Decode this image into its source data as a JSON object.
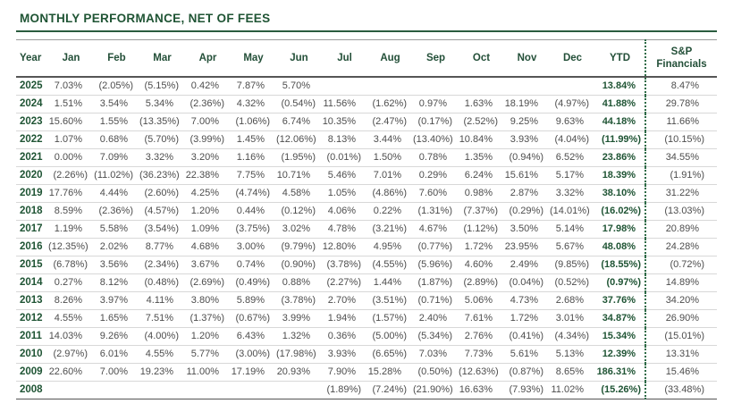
{
  "title": "MONTHLY PERFORMANCE, NET OF FEES",
  "colors": {
    "accent_green": "#1f5434",
    "data_text_gray": "#4d4d4d",
    "row_separator": "#d8d8d8",
    "dotted_divider_green": "#2e6b47"
  },
  "table": {
    "columns": [
      "Year",
      "Jan",
      "Feb",
      "Mar",
      "Apr",
      "May",
      "Jun",
      "Jul",
      "Aug",
      "Sep",
      "Oct",
      "Nov",
      "Dec",
      "YTD"
    ],
    "sp_header": {
      "line1": "S&P",
      "line2": "Financials"
    },
    "rows": [
      {
        "year": "2025",
        "months": [
          "7.03%",
          "(2.05%)",
          "(5.15%)",
          "0.42%",
          "7.87%",
          "5.70%",
          "",
          "",
          "",
          "",
          "",
          ""
        ],
        "ytd": "13.84%",
        "sp": "8.47%"
      },
      {
        "year": "2024",
        "months": [
          "1.51%",
          "3.54%",
          "5.34%",
          "(2.36%)",
          "4.32%",
          "(0.54%)",
          "11.56%",
          "(1.62%)",
          "0.97%",
          "1.63%",
          "18.19%",
          "(4.97%)"
        ],
        "ytd": "41.88%",
        "sp": "29.78%"
      },
      {
        "year": "2023",
        "months": [
          "15.60%",
          "1.55%",
          "(13.35%)",
          "7.00%",
          "(1.06%)",
          "6.74%",
          "10.35%",
          "(2.47%)",
          "(0.17%)",
          "(2.52%)",
          "9.25%",
          "9.63%"
        ],
        "ytd": "44.18%",
        "sp": "11.66%"
      },
      {
        "year": "2022",
        "months": [
          "1.07%",
          "0.68%",
          "(5.70%)",
          "(3.99%)",
          "1.45%",
          "(12.06%)",
          "8.13%",
          "3.44%",
          "(13.40%)",
          "10.84%",
          "3.93%",
          "(4.04%)"
        ],
        "ytd": "(11.99%)",
        "sp": "(10.15%)"
      },
      {
        "year": "2021",
        "months": [
          "0.00%",
          "7.09%",
          "3.32%",
          "3.20%",
          "1.16%",
          "(1.95%)",
          "(0.01%)",
          "1.50%",
          "0.78%",
          "1.35%",
          "(0.94%)",
          "6.52%"
        ],
        "ytd": "23.86%",
        "sp": "34.55%"
      },
      {
        "year": "2020",
        "months": [
          "(2.26%)",
          "(11.02%)",
          "(36.23%)",
          "22.38%",
          "7.75%",
          "10.71%",
          "5.46%",
          "7.01%",
          "0.29%",
          "6.24%",
          "15.61%",
          "5.17%"
        ],
        "ytd": "18.39%",
        "sp": "(1.91%)"
      },
      {
        "year": "2019",
        "months": [
          "17.76%",
          "4.44%",
          "(2.60%)",
          "4.25%",
          "(4.74%)",
          "4.58%",
          "1.05%",
          "(4.86%)",
          "7.60%",
          "0.98%",
          "2.87%",
          "3.32%"
        ],
        "ytd": "38.10%",
        "sp": "31.22%"
      },
      {
        "year": "2018",
        "months": [
          "8.59%",
          "(2.36%)",
          "(4.57%)",
          "1.20%",
          "0.44%",
          "(0.12%)",
          "4.06%",
          "0.22%",
          "(1.31%)",
          "(7.37%)",
          "(0.29%)",
          "(14.01%)"
        ],
        "ytd": "(16.02%)",
        "sp": "(13.03%)"
      },
      {
        "year": "2017",
        "months": [
          "1.19%",
          "5.58%",
          "(3.54%)",
          "1.09%",
          "(3.75%)",
          "3.02%",
          "4.78%",
          "(3.21%)",
          "4.67%",
          "(1.12%)",
          "3.50%",
          "5.14%"
        ],
        "ytd": "17.98%",
        "sp": "20.89%"
      },
      {
        "year": "2016",
        "months": [
          "(12.35%)",
          "2.02%",
          "8.77%",
          "4.68%",
          "3.00%",
          "(9.79%)",
          "12.80%",
          "4.95%",
          "(0.77%)",
          "1.72%",
          "23.95%",
          "5.67%"
        ],
        "ytd": "48.08%",
        "sp": "24.28%"
      },
      {
        "year": "2015",
        "months": [
          "(6.78%)",
          "3.56%",
          "(2.34%)",
          "3.67%",
          "0.74%",
          "(0.90%)",
          "(3.78%)",
          "(4.55%)",
          "(5.96%)",
          "4.60%",
          "2.49%",
          "(9.85%)"
        ],
        "ytd": "(18.55%)",
        "sp": "(0.72%)"
      },
      {
        "year": "2014",
        "months": [
          "0.27%",
          "8.12%",
          "(0.48%)",
          "(2.69%)",
          "(0.49%)",
          "0.88%",
          "(2.27%)",
          "1.44%",
          "(1.87%)",
          "(2.89%)",
          "(0.04%)",
          "(0.52%)"
        ],
        "ytd": "(0.97%)",
        "sp": "14.89%"
      },
      {
        "year": "2013",
        "months": [
          "8.26%",
          "3.97%",
          "4.11%",
          "3.80%",
          "5.89%",
          "(3.78%)",
          "2.70%",
          "(3.51%)",
          "(0.71%)",
          "5.06%",
          "4.73%",
          "2.68%"
        ],
        "ytd": "37.76%",
        "sp": "34.20%"
      },
      {
        "year": "2012",
        "months": [
          "4.55%",
          "1.65%",
          "7.51%",
          "(1.37%)",
          "(0.67%)",
          "3.99%",
          "1.94%",
          "(1.57%)",
          "2.40%",
          "7.61%",
          "1.72%",
          "3.01%"
        ],
        "ytd": "34.87%",
        "sp": "26.90%"
      },
      {
        "year": "2011",
        "months": [
          "14.03%",
          "9.26%",
          "(4.00%)",
          "1.20%",
          "6.43%",
          "1.32%",
          "0.36%",
          "(5.00%)",
          "(5.34%)",
          "2.76%",
          "(0.41%)",
          "(4.34%)"
        ],
        "ytd": "15.34%",
        "sp": "(15.01%)"
      },
      {
        "year": "2010",
        "months": [
          "(2.97%)",
          "6.01%",
          "4.55%",
          "5.77%",
          "(3.00%)",
          "(17.98%)",
          "3.93%",
          "(6.65%)",
          "7.03%",
          "7.73%",
          "5.61%",
          "5.13%"
        ],
        "ytd": "12.39%",
        "sp": "13.31%"
      },
      {
        "year": "2009",
        "months": [
          "22.60%",
          "7.00%",
          "19.23%",
          "11.00%",
          "17.19%",
          "20.93%",
          "7.90%",
          "15.28%",
          "(0.50%)",
          "(12.63%)",
          "(0.87%)",
          "8.65%"
        ],
        "ytd": "186.31%",
        "sp": "15.46%"
      },
      {
        "year": "2008",
        "months": [
          "",
          "",
          "",
          "",
          "",
          "",
          "(1.89%)",
          "(7.24%)",
          "(21.90%)",
          "16.63%",
          "(7.93%)",
          "11.02%"
        ],
        "ytd": "(15.26%)",
        "sp": "(33.48%)"
      }
    ]
  }
}
